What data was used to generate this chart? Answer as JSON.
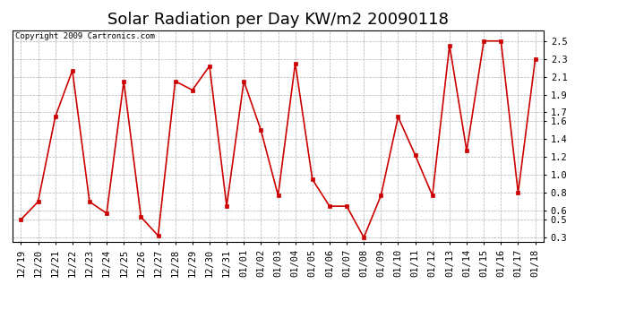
{
  "title": "Solar Radiation per Day KW/m2 20090118",
  "copyright": "Copyright 2009 Cartronics.com",
  "dates": [
    "12/19",
    "12/20",
    "12/21",
    "12/22",
    "12/23",
    "12/24",
    "12/25",
    "12/26",
    "12/27",
    "12/28",
    "12/29",
    "12/30",
    "12/31",
    "01/01",
    "01/02",
    "01/03",
    "01/04",
    "01/05",
    "01/06",
    "01/07",
    "01/08",
    "01/09",
    "01/10",
    "01/11",
    "01/12",
    "01/13",
    "01/14",
    "01/15",
    "01/16",
    "01/17",
    "01/18"
  ],
  "values": [
    0.5,
    0.7,
    1.65,
    2.17,
    0.7,
    0.57,
    2.05,
    0.53,
    0.32,
    2.05,
    1.95,
    2.22,
    0.65,
    2.05,
    1.5,
    0.77,
    2.25,
    0.95,
    0.65,
    0.65,
    0.3,
    0.77,
    1.65,
    1.22,
    0.77,
    2.45,
    1.27,
    2.5,
    2.5,
    0.8,
    2.3
  ],
  "line_color": "#cc0000",
  "marker_color": "#cc0000",
  "background_color": "#ffffff",
  "grid_color": "#aaaaaa",
  "plot_bg_color": "#ffffff",
  "yticks": [
    0.3,
    0.5,
    0.6,
    0.8,
    1.0,
    1.2,
    1.4,
    1.6,
    1.7,
    1.9,
    2.1,
    2.3,
    2.5
  ],
  "ylim": [
    0.25,
    2.62
  ],
  "title_fontsize": 13,
  "tick_fontsize": 7.5,
  "copyright_fontsize": 6.5
}
